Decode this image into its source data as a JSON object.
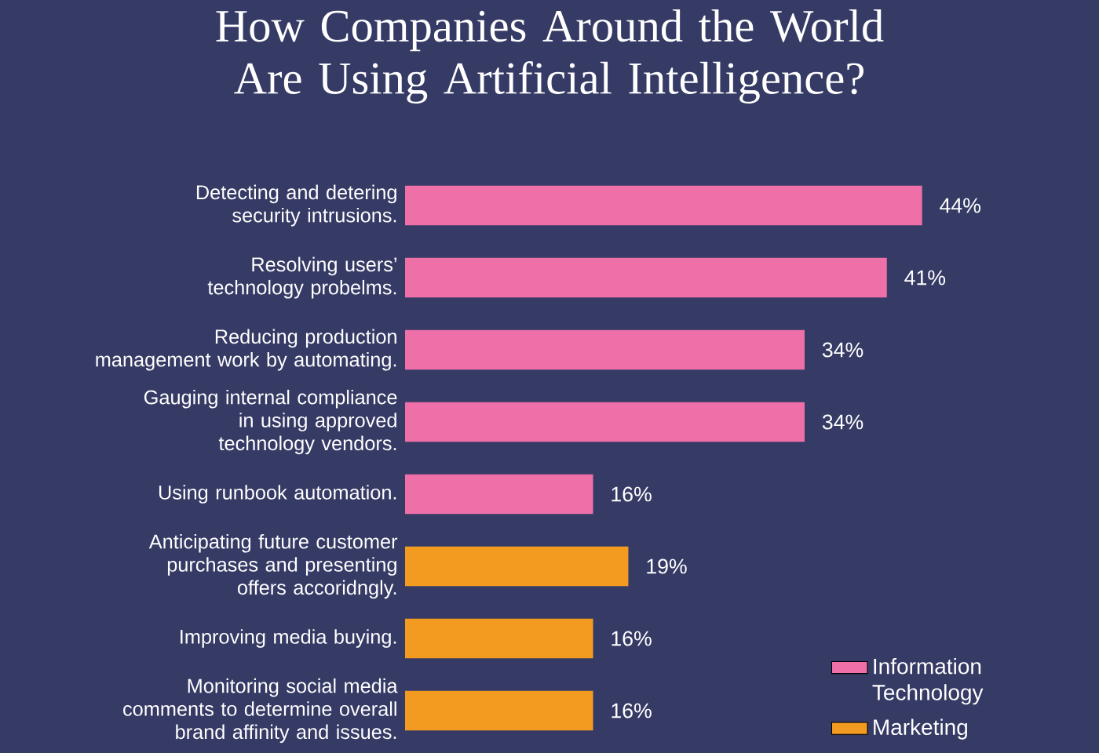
{
  "chart_data": {
    "type": "bar",
    "orientation": "horizontal",
    "title": "How Companies Around the World Are Using Artificial Intelligence?",
    "categories": [
      "Detecting and detering security intrusions.",
      "Resolving users’ technology probelms.",
      "Reducing production management work by automating.",
      "Gauging internal compliance in using approved technology vendors.",
      "Using runbook automation.",
      "Anticipating future customer purchases and presenting offers accoridngly.",
      "Improving media buying.",
      "Monitoring social media comments to determine overall brand affinity and issues."
    ],
    "series": [
      {
        "name": "Information Technology",
        "color": "#ef6fa9",
        "values": [
          44,
          41,
          34,
          34,
          16,
          null,
          null,
          null
        ],
        "value_labels": [
          "44%",
          "41%",
          "34%",
          "34%",
          "16%",
          null,
          null,
          null
        ]
      },
      {
        "name": "Marketing",
        "color": "#f39a20",
        "values": [
          null,
          null,
          null,
          null,
          null,
          19,
          16,
          16
        ],
        "value_labels": [
          null,
          null,
          null,
          null,
          null,
          "19%",
          "16%",
          "16%"
        ]
      }
    ],
    "tick_labels": "y",
    "legend": "bottom right"
  }
}
